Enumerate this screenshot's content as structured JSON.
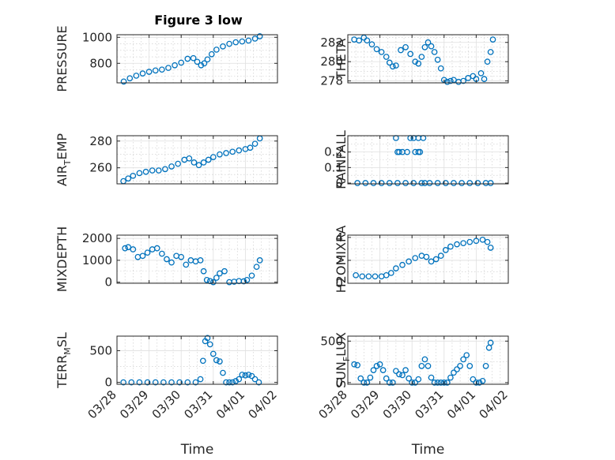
{
  "figure": {
    "title": "Figure 3 low",
    "xlabel": "Time",
    "marker_color": "#0072bd"
  },
  "chart_data": [
    {
      "type": "scatter",
      "id": "pressure",
      "title": "Figure 3 low",
      "ylabel": "PRESSURE",
      "ylabel_sub": "",
      "ylabel_tail": "",
      "xlim": [
        0,
        5
      ],
      "ylim": [
        650,
        1020
      ],
      "yticks": [
        800,
        1000
      ],
      "yticklabels": [
        "800",
        "1000"
      ],
      "yminor": [
        650,
        700,
        750,
        850,
        900,
        950
      ],
      "xticklabels": [],
      "xlabel": "",
      "series": [
        {
          "x": [
            0.21,
            0.4,
            0.6,
            0.8,
            1.0,
            1.2,
            1.4,
            1.6,
            1.8,
            2.0,
            2.2,
            2.38,
            2.5,
            2.62,
            2.72,
            2.82,
            2.95,
            3.1,
            3.3,
            3.5,
            3.7,
            3.9,
            4.1,
            4.3,
            4.45
          ],
          "y": [
            660,
            685,
            705,
            722,
            735,
            745,
            752,
            765,
            785,
            805,
            835,
            840,
            812,
            785,
            800,
            830,
            870,
            905,
            930,
            950,
            962,
            968,
            975,
            990,
            1008
          ]
        }
      ]
    },
    {
      "type": "scatter",
      "id": "theta",
      "title": "",
      "ylabel": "THETA",
      "ylabel_sub": "",
      "ylabel_tail": "",
      "xlim": [
        0,
        5
      ],
      "ylim": [
        277.8,
        282.8
      ],
      "yticks": [
        278,
        280,
        282
      ],
      "yticklabels": [
        "278",
        "280",
        "282"
      ],
      "yminor": [
        278.5,
        279,
        279.5,
        280.5,
        281,
        281.5,
        282.5
      ],
      "xticklabels": [],
      "xlabel": "",
      "series": [
        {
          "x": [
            0.2,
            0.35,
            0.5,
            0.6,
            0.75,
            0.9,
            1.05,
            1.2,
            1.3,
            1.4,
            1.5,
            1.65,
            1.8,
            1.95,
            2.1,
            2.2,
            2.3,
            2.4,
            2.5,
            2.6,
            2.7,
            2.8,
            2.9,
            3.0,
            3.1,
            3.2,
            3.3,
            3.45,
            3.6,
            3.75,
            3.9,
            4.0,
            4.15,
            4.25,
            4.35,
            4.45,
            4.52
          ],
          "y": [
            282.3,
            282.2,
            282.5,
            282.2,
            281.8,
            281.3,
            281.0,
            280.5,
            279.9,
            279.5,
            279.6,
            281.2,
            281.5,
            280.8,
            280.0,
            279.8,
            280.5,
            281.5,
            282.0,
            281.6,
            281.0,
            280.2,
            279.3,
            278.1,
            277.9,
            278.0,
            278.1,
            277.9,
            278.0,
            278.3,
            278.5,
            278.2,
            278.8,
            278.2,
            280.0,
            281.0,
            282.3
          ]
        }
      ]
    },
    {
      "type": "scatter",
      "id": "air-temp",
      "title": "",
      "ylabel": "AIR",
      "ylabel_sub": "T",
      "ylabel_tail": "EMP",
      "xlim": [
        0,
        5
      ],
      "ylim": [
        248,
        284
      ],
      "yticks": [
        260,
        280
      ],
      "yticklabels": [
        "260",
        "280"
      ],
      "yminor": [
        250,
        255,
        265,
        270,
        275
      ],
      "xticklabels": [],
      "xlabel": "",
      "series": [
        {
          "x": [
            0.2,
            0.35,
            0.5,
            0.7,
            0.9,
            1.1,
            1.3,
            1.5,
            1.7,
            1.9,
            2.1,
            2.25,
            2.4,
            2.55,
            2.7,
            2.85,
            3.0,
            3.2,
            3.4,
            3.6,
            3.8,
            4.0,
            4.15,
            4.3,
            4.45
          ],
          "y": [
            250,
            252,
            254,
            256,
            257,
            258,
            258,
            259,
            261,
            263,
            266,
            267,
            264,
            262,
            264,
            266,
            268,
            270,
            271,
            272,
            273,
            274,
            275,
            278,
            282
          ]
        }
      ]
    },
    {
      "type": "scatter",
      "id": "rainfall",
      "title": "",
      "ylabel": "RAINFALL",
      "ylabel_sub": "",
      "ylabel_tail": "",
      "xlim": [
        0,
        5
      ],
      "ylim": [
        -0.005,
        0.305
      ],
      "yticks": [
        0,
        0.1,
        0.2
      ],
      "yticklabels": [
        "0",
        "0.1",
        "0.2"
      ],
      "yminor": [
        0.05,
        0.15,
        0.25,
        0.3
      ],
      "xticklabels": [],
      "xlabel": "",
      "series": [
        {
          "x": [
            0.3,
            0.55,
            0.8,
            1.05,
            1.3,
            1.55,
            1.8,
            2.05,
            2.3,
            2.55,
            2.8,
            3.05,
            3.3,
            3.55,
            3.8,
            4.05,
            4.3,
            4.45,
            1.5,
            1.6,
            1.7,
            1.85,
            2.05,
            2.1,
            2.2,
            2.25,
            2.35,
            1.55,
            1.95,
            2.2,
            2.4
          ],
          "y": [
            0,
            0,
            0,
            0,
            0,
            0,
            0,
            0,
            0,
            0,
            0,
            0,
            0,
            0,
            0,
            0,
            0,
            0,
            0.29,
            0.2,
            0.2,
            0.2,
            0.29,
            0.2,
            0.29,
            0.2,
            0.29,
            0.2,
            0.29,
            0.2,
            0
          ]
        }
      ]
    },
    {
      "type": "scatter",
      "id": "mixdepth",
      "title": "",
      "ylabel": "MIXDEPTH",
      "ylabel_sub": "",
      "ylabel_tail": "",
      "xlim": [
        0,
        5
      ],
      "ylim": [
        -50,
        2150
      ],
      "yticks": [
        0,
        1000,
        2000
      ],
      "yticklabels": [
        "0",
        "1000",
        "2000"
      ],
      "yminor": [
        500,
        1500
      ],
      "xticklabels": [],
      "xlabel": "",
      "series": [
        {
          "x": [
            0.25,
            0.35,
            0.5,
            0.65,
            0.8,
            0.95,
            1.1,
            1.25,
            1.4,
            1.55,
            1.7,
            1.85,
            2.0,
            2.15,
            2.3,
            2.45,
            2.6,
            2.7,
            2.8,
            2.9,
            3.0,
            3.1,
            3.2,
            3.35,
            3.5,
            3.65,
            3.8,
            3.95,
            4.05,
            4.2,
            4.35,
            4.45
          ],
          "y": [
            1550,
            1600,
            1500,
            1150,
            1200,
            1350,
            1500,
            1550,
            1300,
            1050,
            900,
            1200,
            1150,
            800,
            1000,
            950,
            1000,
            500,
            100,
            50,
            0,
            200,
            400,
            500,
            0,
            20,
            50,
            40,
            100,
            300,
            700,
            1000
          ]
        }
      ]
    },
    {
      "type": "scatter",
      "id": "h2omixra",
      "title": "",
      "ylabel": "H2OMIXRA",
      "ylabel_sub": "",
      "ylabel_tail": "",
      "xlim": [
        0,
        5
      ],
      "ylim": [
        0,
        4.2
      ],
      "yticks": [
        0,
        2,
        4
      ],
      "yticklabels": [
        "0",
        "2",
        "4"
      ],
      "yminor": [
        1,
        3
      ],
      "xticklabels": [],
      "xlabel": "",
      "series": [
        {
          "x": [
            0.25,
            0.45,
            0.65,
            0.85,
            1.05,
            1.2,
            1.35,
            1.5,
            1.7,
            1.9,
            2.1,
            2.3,
            2.45,
            2.6,
            2.75,
            2.9,
            3.05,
            3.2,
            3.4,
            3.6,
            3.8,
            4.0,
            4.2,
            4.35,
            4.45
          ],
          "y": [
            0.7,
            0.6,
            0.6,
            0.6,
            0.6,
            0.7,
            0.9,
            1.3,
            1.6,
            1.9,
            2.2,
            2.4,
            2.3,
            1.9,
            2.1,
            2.4,
            2.9,
            3.2,
            3.4,
            3.5,
            3.6,
            3.7,
            3.8,
            3.6,
            3.1
          ]
        }
      ]
    },
    {
      "type": "scatter",
      "id": "terr-msl",
      "title": "",
      "ylabel": "TERR",
      "ylabel_sub": "M",
      "ylabel_tail": "SL",
      "xlim": [
        0,
        5
      ],
      "ylim": [
        -30,
        730
      ],
      "yticks": [
        0,
        500
      ],
      "yticklabels": [
        "0",
        "500"
      ],
      "yminor": [
        250,
        750
      ],
      "xticklabels": [
        "03/28",
        "03/29",
        "03/30",
        "03/31",
        "04/01",
        "04/02"
      ],
      "xlabel": "Time",
      "series": [
        {
          "x": [
            0.2,
            0.45,
            0.7,
            0.95,
            1.2,
            1.45,
            1.7,
            1.95,
            2.2,
            2.45,
            2.6,
            2.68,
            2.75,
            2.82,
            2.9,
            3.0,
            3.1,
            3.2,
            3.3,
            3.4,
            3.5,
            3.6,
            3.7,
            3.8,
            3.9,
            4.0,
            4.1,
            4.2,
            4.3,
            4.42
          ],
          "y": [
            0,
            0,
            0,
            0,
            0,
            0,
            0,
            0,
            0,
            0,
            50,
            340,
            650,
            700,
            600,
            450,
            350,
            330,
            150,
            0,
            0,
            0,
            20,
            50,
            120,
            110,
            120,
            100,
            50,
            0
          ]
        }
      ]
    },
    {
      "type": "scatter",
      "id": "sun-flux",
      "title": "",
      "ylabel": "SUN",
      "ylabel_sub": "F",
      "ylabel_tail": "LUX",
      "xlim": [
        0,
        5
      ],
      "ylim": [
        -20,
        560
      ],
      "yticks": [
        0,
        500
      ],
      "yticklabels": [
        "0",
        "500"
      ],
      "yminor": [
        250
      ],
      "xticklabels": [
        "03/28",
        "03/29",
        "03/30",
        "03/31",
        "04/01",
        "04/02"
      ],
      "xlabel": "Time",
      "series": [
        {
          "x": [
            0.2,
            0.3,
            0.4,
            0.5,
            0.6,
            0.7,
            0.8,
            0.9,
            1.0,
            1.1,
            1.2,
            1.3,
            1.4,
            1.5,
            1.6,
            1.7,
            1.8,
            1.9,
            2.0,
            2.1,
            2.2,
            2.3,
            2.4,
            2.5,
            2.6,
            2.7,
            2.8,
            2.9,
            3.0,
            3.1,
            3.2,
            3.3,
            3.4,
            3.5,
            3.6,
            3.7,
            3.8,
            3.9,
            4.0,
            4.1,
            4.2,
            4.3,
            4.4,
            4.45
          ],
          "y": [
            220,
            210,
            50,
            0,
            0,
            60,
            150,
            200,
            220,
            150,
            50,
            0,
            0,
            140,
            100,
            90,
            150,
            50,
            0,
            0,
            40,
            200,
            280,
            200,
            60,
            0,
            0,
            0,
            0,
            0,
            60,
            120,
            160,
            200,
            280,
            330,
            200,
            40,
            0,
            0,
            20,
            200,
            420,
            480
          ]
        }
      ]
    }
  ]
}
